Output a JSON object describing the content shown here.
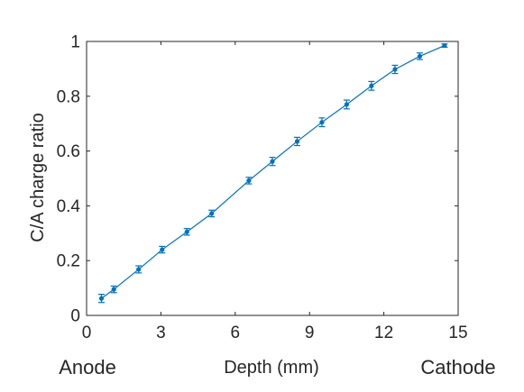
{
  "chart_data": {
    "type": "line",
    "xlabel": "Depth (mm)",
    "ylabel": "C/A charge ratio",
    "xlim": [
      0,
      15
    ],
    "ylim": [
      0,
      1
    ],
    "xticks": [
      0,
      3,
      6,
      9,
      12,
      15
    ],
    "yticks": [
      0,
      0.2,
      0.4,
      0.6,
      0.8,
      1
    ],
    "x_tick_labels": [
      "0",
      "3",
      "6",
      "9",
      "12",
      "15"
    ],
    "y_tick_labels": [
      "0",
      "0.2",
      "0.4",
      "0.6",
      "0.8",
      "1"
    ],
    "left_end_label": "Anode",
    "right_end_label": "Cathode",
    "grid": false,
    "series": [
      {
        "color": "#0072BD",
        "x": [
          0.6,
          1.1,
          2.1,
          3.05,
          4.05,
          5.05,
          6.55,
          7.5,
          8.5,
          9.5,
          10.5,
          11.5,
          12.45,
          13.45,
          14.45
        ],
        "y": [
          0.062,
          0.095,
          0.168,
          0.24,
          0.305,
          0.372,
          0.492,
          0.562,
          0.635,
          0.705,
          0.77,
          0.838,
          0.898,
          0.946,
          0.985
        ],
        "error": [
          0.015,
          0.012,
          0.013,
          0.012,
          0.012,
          0.012,
          0.012,
          0.015,
          0.015,
          0.016,
          0.016,
          0.016,
          0.015,
          0.012,
          0.006
        ]
      }
    ]
  }
}
